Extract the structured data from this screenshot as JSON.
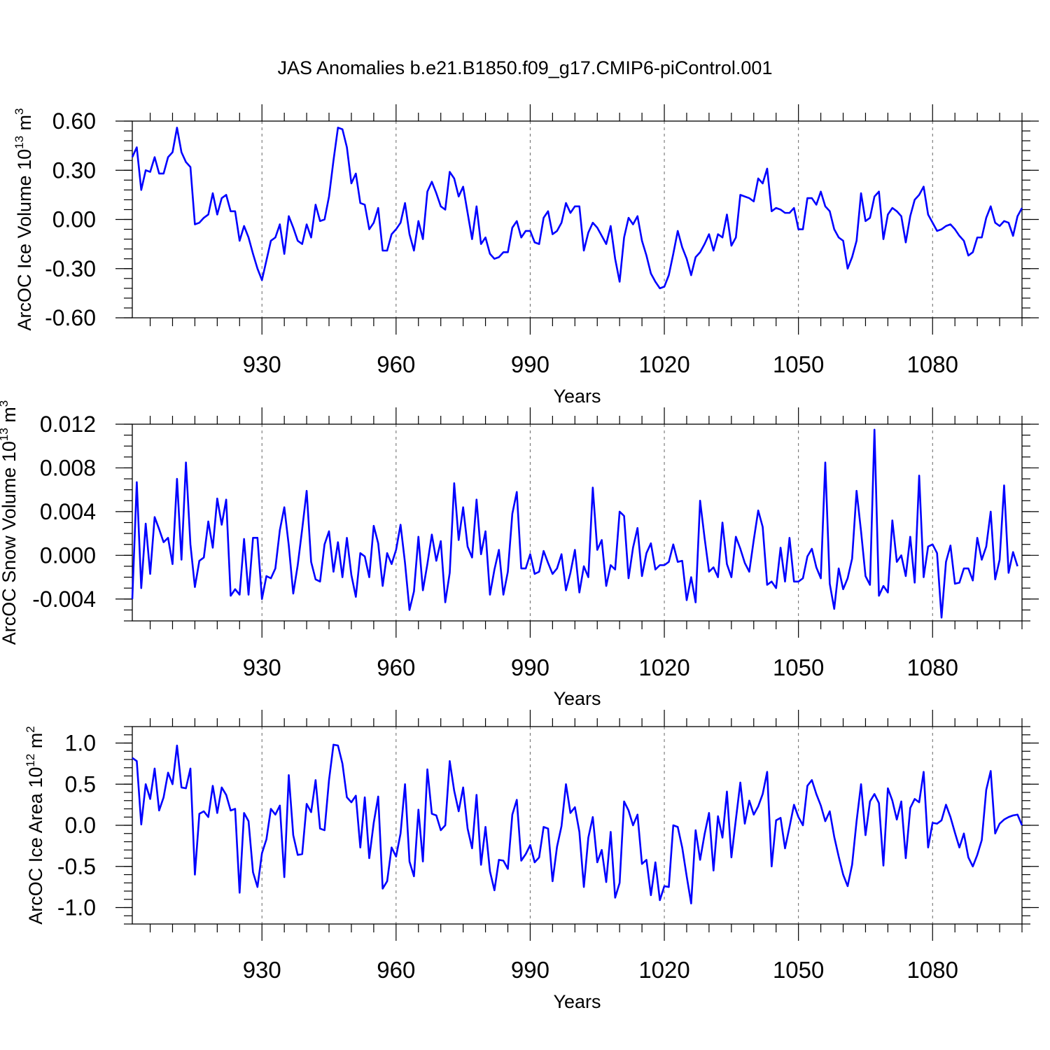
{
  "title": "JAS Anomalies b.e21.B1850.f09_g17.CMIP6-piControl.001",
  "colors": {
    "line": "#0000ff",
    "axis": "#000000",
    "grid": "#666666"
  },
  "chart_data": [
    {
      "type": "line",
      "name": "ice-volume",
      "ylabel_main": "ArcOC Ice Volume 10",
      "ylabel_exp": "13",
      "ylabel_unit": "m",
      "ylabel_unit_exp": "3",
      "xlabel": "Years",
      "xlim": [
        901,
        1100
      ],
      "ylim": [
        -0.6,
        0.6
      ],
      "xticks": [
        930,
        960,
        990,
        1020,
        1050,
        1080
      ],
      "yticks": [
        -0.6,
        -0.3,
        0.0,
        0.3,
        0.6
      ],
      "ytick_labels": [
        "-0.60",
        "-0.30",
        "0.00",
        "0.30",
        "0.60"
      ],
      "y_minor_step": 0.06,
      "x_start": 901,
      "values": [
        0.38,
        0.44,
        0.18,
        0.3,
        0.29,
        0.38,
        0.28,
        0.28,
        0.38,
        0.41,
        0.56,
        0.41,
        0.35,
        0.32,
        -0.03,
        -0.02,
        0.01,
        0.03,
        0.16,
        0.03,
        0.13,
        0.15,
        0.05,
        0.05,
        -0.13,
        -0.04,
        -0.11,
        -0.21,
        -0.3,
        -0.37,
        -0.25,
        -0.13,
        -0.11,
        -0.03,
        -0.21,
        0.02,
        -0.05,
        -0.13,
        -0.15,
        -0.03,
        -0.11,
        0.09,
        -0.01,
        0.0,
        0.14,
        0.36,
        0.56,
        0.55,
        0.44,
        0.22,
        0.28,
        0.1,
        0.09,
        -0.06,
        -0.02,
        0.07,
        -0.19,
        -0.19,
        -0.09,
        -0.06,
        -0.02,
        0.1,
        -0.09,
        -0.19,
        -0.01,
        -0.12,
        0.17,
        0.23,
        0.16,
        0.08,
        0.06,
        0.29,
        0.25,
        0.14,
        0.2,
        0.04,
        -0.12,
        0.08,
        -0.15,
        -0.11,
        -0.21,
        -0.24,
        -0.23,
        -0.2,
        -0.2,
        -0.05,
        -0.01,
        -0.11,
        -0.07,
        -0.07,
        -0.14,
        -0.15,
        0.01,
        0.05,
        -0.09,
        -0.07,
        -0.02,
        0.1,
        0.04,
        0.08,
        0.08,
        -0.19,
        -0.08,
        -0.02,
        -0.05,
        -0.1,
        -0.15,
        -0.04,
        -0.24,
        -0.38,
        -0.11,
        0.01,
        -0.03,
        0.02,
        -0.13,
        -0.22,
        -0.33,
        -0.38,
        -0.42,
        -0.41,
        -0.34,
        -0.21,
        -0.07,
        -0.17,
        -0.24,
        -0.34,
        -0.23,
        -0.2,
        -0.15,
        -0.09,
        -0.19,
        -0.09,
        -0.11,
        0.03,
        -0.16,
        -0.11,
        0.15,
        0.14,
        0.13,
        0.11,
        0.25,
        0.22,
        0.31,
        0.05,
        0.07,
        0.06,
        0.04,
        0.04,
        0.07,
        -0.06,
        -0.06,
        0.13,
        0.13,
        0.09,
        0.17,
        0.08,
        0.05,
        -0.06,
        -0.11,
        -0.13,
        -0.3,
        -0.23,
        -0.13,
        0.16,
        -0.01,
        0.01,
        0.14,
        0.17,
        -0.12,
        0.03,
        0.07,
        0.05,
        0.02,
        -0.14,
        0.02,
        0.12,
        0.15,
        0.2,
        0.03,
        -0.02,
        -0.07,
        -0.06,
        -0.04,
        -0.03,
        -0.06,
        -0.1,
        -0.13,
        -0.22,
        -0.2,
        -0.11,
        -0.11,
        0.01,
        0.08,
        -0.02,
        -0.04,
        -0.01,
        -0.02,
        -0.1,
        0.02,
        0.07
      ]
    },
    {
      "type": "line",
      "name": "snow-volume",
      "ylabel_main": "ArcOC Snow Volume 10",
      "ylabel_exp": "13",
      "ylabel_unit": "m",
      "ylabel_unit_exp": "3",
      "xlabel": "Years",
      "xlim": [
        901,
        1100
      ],
      "ylim": [
        -0.006,
        0.012
      ],
      "xticks": [
        930,
        960,
        990,
        1020,
        1050,
        1080
      ],
      "yticks": [
        -0.004,
        0.0,
        0.004,
        0.008,
        0.012
      ],
      "ytick_labels": [
        "-0.004",
        "0.000",
        "0.004",
        "0.008",
        "0.012"
      ],
      "y_minor_step": 0.001,
      "x_start": 901,
      "values": [
        -0.004,
        0.0067,
        -0.003,
        0.0029,
        -0.0017,
        0.0035,
        0.0024,
        0.0012,
        0.0016,
        -0.0008,
        0.007,
        -0.0004,
        0.0085,
        0.001,
        -0.0029,
        -0.0005,
        -0.0002,
        0.0031,
        0.0007,
        0.0052,
        0.0028,
        0.0051,
        -0.0037,
        -0.0031,
        -0.0036,
        0.0015,
        -0.0036,
        0.0016,
        0.0016,
        -0.004,
        -0.0019,
        -0.0021,
        -0.0012,
        0.0023,
        0.0044,
        0.0009,
        -0.0035,
        -0.0009,
        0.0024,
        0.0059,
        -0.0006,
        -0.0022,
        -0.0024,
        0.001,
        0.0022,
        -0.0015,
        0.0012,
        -0.002,
        0.0016,
        -0.0018,
        -0.0038,
        0.0002,
        -0.0001,
        -0.002,
        0.0027,
        0.0011,
        -0.0028,
        0.0002,
        -0.0008,
        0.0005,
        0.0028,
        -0.0007,
        -0.005,
        -0.0033,
        0.0017,
        -0.0032,
        -0.0008,
        0.0019,
        -0.0005,
        0.0013,
        -0.0043,
        -0.0016,
        0.0066,
        0.0014,
        0.0044,
        0.0008,
        -0.0002,
        0.0051,
        0.0001,
        0.0022,
        -0.0036,
        -0.0013,
        0.0005,
        -0.0036,
        -0.0015,
        0.0038,
        0.0058,
        -0.0012,
        -0.0012,
        0.0001,
        -0.0017,
        -0.0015,
        0.0004,
        -0.0007,
        -0.0017,
        -0.0012,
        0.0001,
        -0.0032,
        -0.0016,
        0.0005,
        -0.0034,
        -0.001,
        -0.002,
        0.0062,
        0.0005,
        0.0014,
        -0.0028,
        -0.0009,
        -0.0013,
        0.004,
        0.0036,
        -0.0021,
        0.0007,
        0.0025,
        -0.0019,
        0.0002,
        0.0011,
        -0.0013,
        -0.0009,
        -0.0009,
        -0.0006,
        0.001,
        -0.0006,
        -0.0005,
        -0.0041,
        -0.002,
        -0.0043,
        0.005,
        0.0016,
        -0.0015,
        -0.0011,
        -0.002,
        0.003,
        -0.0008,
        -0.002,
        0.0017,
        0.0006,
        -0.0007,
        -0.0015,
        0.0014,
        0.0041,
        0.0026,
        -0.0027,
        -0.0024,
        -0.003,
        0.0007,
        -0.0024,
        0.0016,
        -0.0024,
        -0.0024,
        -0.0021,
        -0.0001,
        0.0006,
        -0.0011,
        -0.0021,
        0.0085,
        -0.0026,
        -0.0049,
        -0.0012,
        -0.0031,
        -0.0021,
        -0.0003,
        0.0059,
        0.0022,
        -0.0019,
        -0.0027,
        0.0115,
        -0.0037,
        -0.0028,
        -0.0034,
        0.0032,
        -0.0006,
        0.0,
        -0.0019,
        0.0017,
        -0.0025,
        0.0073,
        -0.002,
        0.0008,
        0.001,
        0.0002,
        -0.0057,
        -0.0006,
        0.0009,
        -0.0026,
        -0.0025,
        -0.0012,
        -0.0012,
        -0.0023,
        0.0016,
        -0.0004,
        0.0008,
        0.004,
        -0.0022,
        -0.0004,
        0.0064,
        -0.0016,
        0.0003,
        -0.001
      ]
    },
    {
      "type": "line",
      "name": "ice-area",
      "ylabel_main": "ArcOC Ice Area 10",
      "ylabel_exp": "12",
      "ylabel_unit": "m",
      "ylabel_unit_exp": "2",
      "xlabel": "Years",
      "xlim": [
        901,
        1100
      ],
      "ylim": [
        -1.2,
        1.2
      ],
      "xticks": [
        930,
        960,
        990,
        1020,
        1050,
        1080
      ],
      "yticks": [
        -1.0,
        -0.5,
        0.0,
        0.5,
        1.0
      ],
      "ytick_labels": [
        "-1.0",
        "-0.5",
        "0.0",
        "0.5",
        "1.0"
      ],
      "y_minor_step": 0.1,
      "x_start": 901,
      "values": [
        0.82,
        0.78,
        0.01,
        0.5,
        0.32,
        0.69,
        0.18,
        0.34,
        0.64,
        0.5,
        0.97,
        0.46,
        0.45,
        0.69,
        -0.6,
        0.14,
        0.17,
        0.1,
        0.48,
        0.15,
        0.46,
        0.37,
        0.18,
        0.2,
        -0.82,
        0.15,
        0.05,
        -0.57,
        -0.75,
        -0.34,
        -0.17,
        0.2,
        0.13,
        0.24,
        -0.63,
        0.61,
        -0.12,
        -0.36,
        -0.35,
        0.26,
        0.16,
        0.55,
        -0.04,
        -0.06,
        0.55,
        0.98,
        0.97,
        0.75,
        0.34,
        0.28,
        0.36,
        -0.27,
        0.34,
        -0.4,
        0.03,
        0.35,
        -0.77,
        -0.68,
        -0.27,
        -0.38,
        -0.1,
        0.5,
        -0.44,
        -0.62,
        0.19,
        -0.44,
        0.68,
        0.14,
        0.12,
        -0.06,
        0.0,
        0.78,
        0.42,
        0.17,
        0.46,
        -0.04,
        -0.28,
        0.37,
        -0.48,
        -0.02,
        -0.56,
        -0.79,
        -0.42,
        -0.43,
        -0.53,
        0.13,
        0.31,
        -0.43,
        -0.35,
        -0.24,
        -0.45,
        -0.39,
        -0.02,
        -0.04,
        -0.68,
        -0.26,
        -0.01,
        0.5,
        0.15,
        0.22,
        -0.08,
        -0.75,
        -0.15,
        0.1,
        -0.45,
        -0.3,
        -0.69,
        -0.08,
        -0.88,
        -0.7,
        0.29,
        0.18,
        0.0,
        0.13,
        -0.47,
        -0.42,
        -0.85,
        -0.45,
        -0.91,
        -0.74,
        -0.75,
        0.0,
        -0.02,
        -0.27,
        -0.62,
        -0.95,
        -0.06,
        -0.42,
        -0.11,
        0.15,
        -0.55,
        0.11,
        -0.15,
        0.41,
        -0.39,
        0.07,
        0.52,
        0.02,
        0.3,
        0.13,
        0.23,
        0.38,
        0.65,
        -0.5,
        0.06,
        0.09,
        -0.28,
        -0.02,
        0.25,
        0.1,
        0.0,
        0.48,
        0.55,
        0.38,
        0.24,
        0.05,
        0.17,
        -0.14,
        -0.38,
        -0.6,
        -0.74,
        -0.48,
        0.05,
        0.5,
        -0.12,
        0.29,
        0.38,
        0.27,
        -0.49,
        0.45,
        0.3,
        0.07,
        0.29,
        -0.4,
        0.21,
        0.32,
        0.28,
        0.65,
        -0.27,
        0.03,
        0.02,
        0.06,
        0.25,
        0.1,
        -0.09,
        -0.27,
        -0.1,
        -0.39,
        -0.5,
        -0.36,
        -0.18,
        0.43,
        0.66,
        -0.1,
        0.02,
        0.07,
        0.1,
        0.12,
        0.13,
        0.0
      ]
    }
  ]
}
